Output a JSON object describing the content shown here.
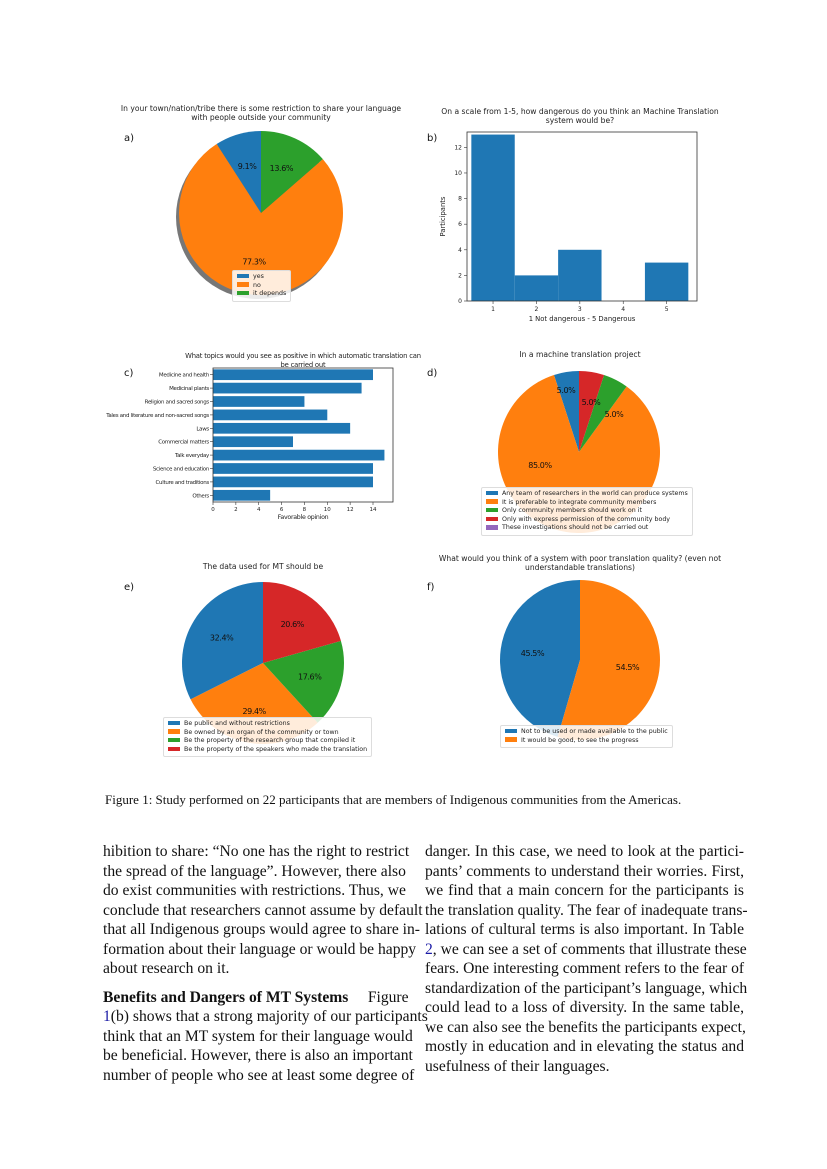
{
  "colors": {
    "blue": "#1f77b4",
    "orange": "#ff7f0e",
    "green": "#2ca02c",
    "red": "#d62728",
    "purple": "#9467bd"
  },
  "chart_data": [
    {
      "id": "a",
      "panel": "a)",
      "type": "pie",
      "title": [
        "In your town/nation/tribe there is some restriction to share your language",
        "with people outside your community"
      ],
      "labels": [
        "yes",
        "no",
        "it depends"
      ],
      "values": [
        9.1,
        77.3,
        13.6
      ],
      "value_labels": [
        "9.1%",
        "77.3%",
        "13.6%"
      ],
      "colors": [
        "#1f77b4",
        "#ff7f0e",
        "#2ca02c"
      ],
      "startangle": 90,
      "shadow": true,
      "legend": "bottom-center"
    },
    {
      "id": "b",
      "panel": "b)",
      "type": "bar",
      "title": [
        "On a scale from 1-5, how dangerous do you think an Machine Translation",
        "system would be?"
      ],
      "categories": [
        1,
        2,
        3,
        4,
        5
      ],
      "values": [
        13,
        2,
        4,
        0,
        3
      ],
      "xlabel": "1 Not dangerous - 5 Dangerous",
      "ylabel": "Participants",
      "yticks": [
        0,
        2,
        4,
        6,
        8,
        10,
        12
      ],
      "xticks": [
        1,
        2,
        3,
        4,
        5
      ],
      "ylim": [
        0,
        13.2
      ],
      "xlim": [
        0.4,
        5.7
      ],
      "color": "#1f77b4",
      "grid": false
    },
    {
      "id": "c",
      "panel": "c)",
      "type": "bar",
      "orientation": "horizontal",
      "title": [
        "What topics would you see as positive in which automatic translation can",
        "be carried out"
      ],
      "categories": [
        "Medicine and health",
        "Medicinal plants",
        "Religion and sacred songs",
        "Tales and literature and non-sacred songs",
        "Laws",
        "Commercial matters",
        "Talk everyday",
        "Science and education",
        "Culture and traditions",
        "Others"
      ],
      "values": [
        14,
        13,
        8,
        10,
        12,
        7,
        15,
        14,
        14,
        5
      ],
      "xlabel": "Favorable opinion",
      "xticks": [
        0,
        2,
        4,
        6,
        8,
        10,
        12,
        14
      ],
      "xlim": [
        0,
        15.75
      ],
      "color": "#1f77b4",
      "grid": false
    },
    {
      "id": "d",
      "panel": "d)",
      "type": "pie",
      "title": [
        "In a machine translation project"
      ],
      "labels": [
        "Any team of researchers in the world can produce systems",
        "It is preferable to integrate community members",
        "Only community members should work on it",
        "Only with express permission  of the community body",
        "These investigations should not be carried out"
      ],
      "values": [
        5.0,
        85.0,
        5.0,
        5.0,
        0
      ],
      "value_labels": [
        "5.0%",
        "85.0%",
        "5.0%",
        "5.0%",
        ""
      ],
      "colors": [
        "#1f77b4",
        "#ff7f0e",
        "#2ca02c",
        "#d62728",
        "#9467bd"
      ],
      "startangle": 90,
      "legend": "bottom-center"
    },
    {
      "id": "e",
      "panel": "e)",
      "type": "pie",
      "title": [
        "The data used for MT should be"
      ],
      "labels": [
        "Be public and without restrictions",
        "Be owned by an organ of the community or town",
        "Be the property of the research group that compiled it",
        "Be the property of the speakers who made the translation"
      ],
      "values": [
        32.4,
        29.4,
        17.6,
        20.6
      ],
      "value_labels": [
        "32.4%",
        "29.4%",
        "17.6%",
        "20.6%"
      ],
      "colors": [
        "#1f77b4",
        "#ff7f0e",
        "#2ca02c",
        "#d62728"
      ],
      "startangle": 90,
      "legend": "bottom-center"
    },
    {
      "id": "f",
      "panel": "f)",
      "type": "pie",
      "title": [
        "What would you think of a system with poor translation quality? (even not",
        "understandable translations)"
      ],
      "labels": [
        "Not to be used or made available to the public",
        "It would be good, to see the progress"
      ],
      "values": [
        45.5,
        54.5
      ],
      "value_labels": [
        "45.5%",
        "54.5%"
      ],
      "colors": [
        "#1f77b4",
        "#ff7f0e"
      ],
      "startangle": 90,
      "legend": "bottom-center"
    }
  ],
  "caption": "Figure 1: Study performed on 22 participants that are members of Indigenous communities from the Americas.",
  "left_column": [
    {
      "text": "hibition to share: “No one has the right to restrict"
    },
    {
      "text": "the spread of the language”. However, there also"
    },
    {
      "text": "do exist communities with restrictions. Thus, we"
    },
    {
      "text": "conclude that researchers cannot assume by default"
    },
    {
      "text": "that all Indigenous groups would agree to share in-"
    },
    {
      "text": "formation about their language or would be happy"
    },
    {
      "text": "about research on it.",
      "last": true
    },
    {
      "gap": true
    },
    {
      "bold": "Benefits and Dangers of MT Systems",
      "text": "Figure"
    },
    {
      "ref": "1",
      "text": "(b) shows that a strong majority of our participants"
    },
    {
      "text": "think that an MT system for their language would"
    },
    {
      "text": "be beneficial. However, there is also an important"
    },
    {
      "text": "number of people who see at least some degree of"
    }
  ],
  "right_column": [
    {
      "text": "danger. In this case, we need to look at the partici-"
    },
    {
      "text": "pants’ comments to understand their worries. First,"
    },
    {
      "text": "we find that a main concern for the participants is"
    },
    {
      "text": "the translation quality. The fear of inadequate trans-"
    },
    {
      "text": "lations of cultural terms is also important. In Table"
    },
    {
      "ref": "2",
      "text": ", we can see a set of comments that illustrate these"
    },
    {
      "text": "fears. One interesting comment refers to the fear of"
    },
    {
      "text": "standardization of the participant’s language, which"
    },
    {
      "text": "could lead to a loss of diversity. In the same table,"
    },
    {
      "text": "we can also see the benefits the participants expect,"
    },
    {
      "text": "mostly in education and in elevating the status and"
    },
    {
      "text": "usefulness of their languages.",
      "last": true
    }
  ]
}
